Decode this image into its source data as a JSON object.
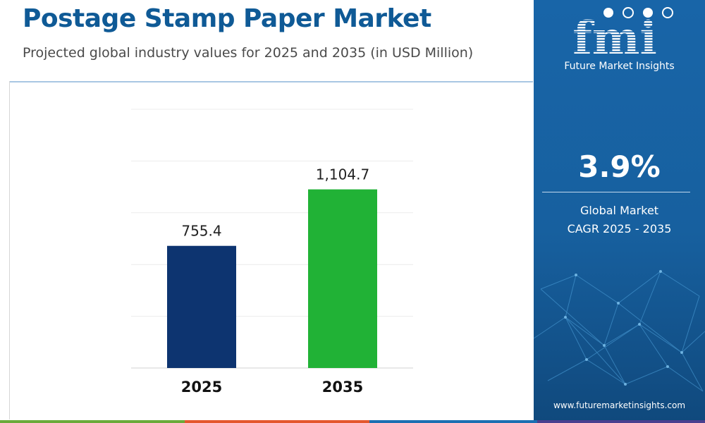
{
  "title": "Postage Stamp Paper Market",
  "subtitle": "Projected global industry values for 2025 and 2035 (in USD Million)",
  "chart_data": {
    "type": "bar",
    "categories": [
      "2025",
      "2035"
    ],
    "values": [
      755.4,
      1104.7
    ],
    "value_labels": [
      "755.4",
      "1,104.7"
    ],
    "ylim": [
      0,
      1600
    ],
    "grid": true,
    "colors": [
      "#0d3470",
      "#21b236"
    ]
  },
  "brand": {
    "logo": "fmi",
    "name": "Future Market Insights",
    "cagr_value": "3.9%",
    "cagr_label_line1": "Global Market",
    "cagr_label_line2": "CAGR 2025 - 2035",
    "website": "www.futuremarketinsights.com",
    "panel_color": "#1865a8",
    "title_color": "#0f5a96"
  },
  "footer_colors": [
    "#6aaa3a",
    "#e4572e",
    "#1b6fb2",
    "#4a3f8f"
  ]
}
